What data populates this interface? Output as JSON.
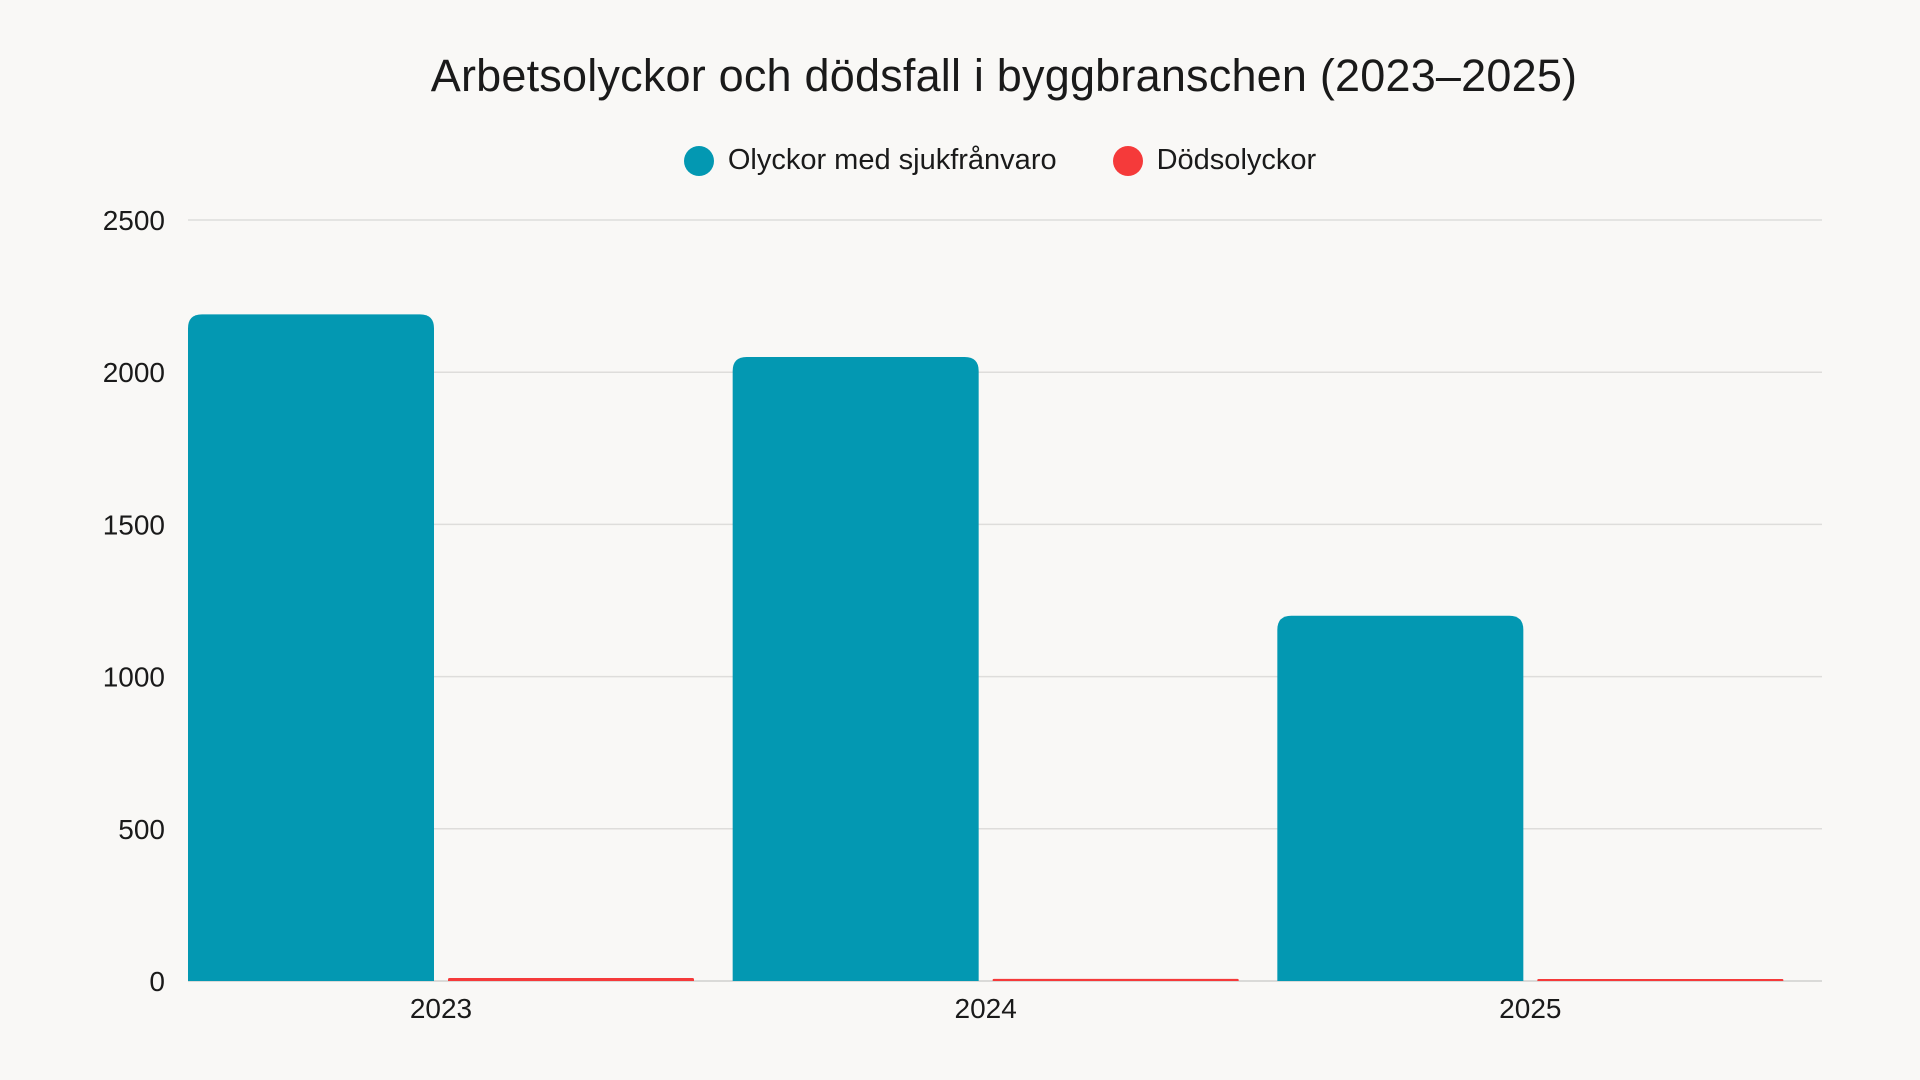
{
  "chart_data": {
    "type": "bar",
    "title": "Arbetsolyckor och dödsfall i byggbranschen (2023–2025)",
    "categories": [
      "2023",
      "2024",
      "2025"
    ],
    "series": [
      {
        "name": "Olyckor med sjukfrånvaro",
        "color": "#0398b2",
        "values": [
          2190,
          2050,
          1200
        ]
      },
      {
        "name": "Dödsolyckor",
        "color": "#f53a3a",
        "values": [
          10,
          7,
          3
        ]
      }
    ],
    "ylim": [
      0,
      2500
    ],
    "yticks": [
      0,
      500,
      1000,
      1500,
      2000,
      2500
    ],
    "xlabel": "",
    "ylabel": "",
    "grid": true,
    "legend_position": "top-center"
  }
}
